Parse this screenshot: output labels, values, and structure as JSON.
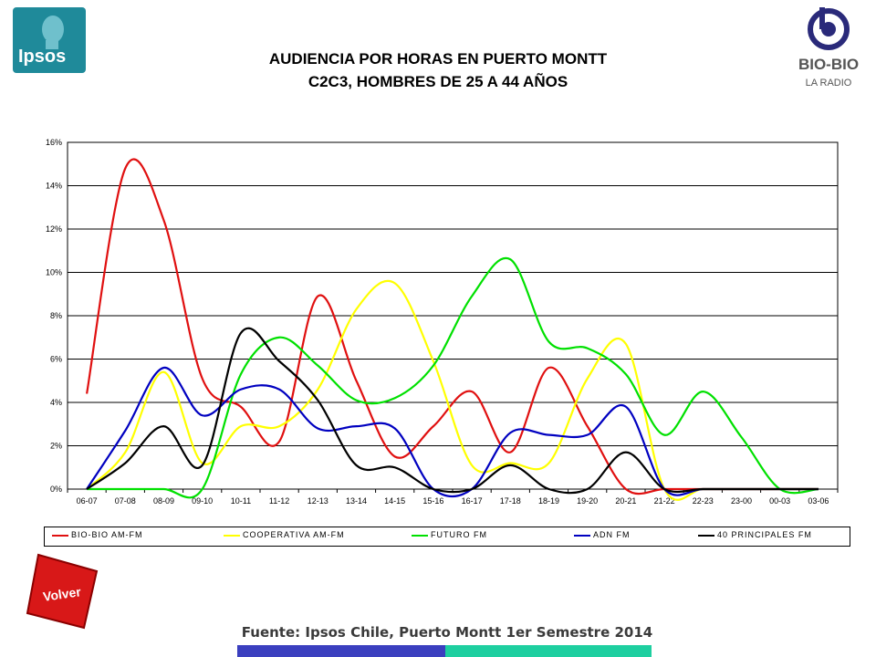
{
  "header": {
    "title_line1": "AUDIENCIA POR HORAS EN PUERTO MONTT",
    "title_line2": "C2C3, HOMBRES DE 25 A 44 AÑOS",
    "logo_left_text": "Ipsos",
    "logo_right_text": "BIO-BIO",
    "logo_right_sub": "LA RADIO"
  },
  "volver_label": "Volver",
  "source": "Fuente: Ipsos Chile, Puerto Montt 1er Semestre 2014",
  "chart_data": {
    "type": "line",
    "categories": [
      "06-07",
      "07-08",
      "08-09",
      "09-10",
      "10-11",
      "11-12",
      "12-13",
      "13-14",
      "14-15",
      "15-16",
      "16-17",
      "17-18",
      "18-19",
      "19-20",
      "20-21",
      "21-22",
      "22-23",
      "23-00",
      "00-03",
      "03-06"
    ],
    "y_ticks": [
      "0%",
      "2%",
      "4%",
      "6%",
      "8%",
      "10%",
      "12%",
      "14%",
      "16%"
    ],
    "ylim": [
      0,
      16
    ],
    "y_unit": "%",
    "grid": true,
    "smooth": true,
    "legend_position": "bottom",
    "series": [
      {
        "name": "BIO-BIO AM-FM",
        "color": "#e01010",
        "values": [
          4.4,
          14.8,
          12.4,
          5.1,
          3.8,
          2.2,
          8.9,
          5.0,
          1.5,
          2.9,
          4.5,
          1.7,
          5.6,
          2.9,
          0.0,
          0.0,
          0.0,
          0.0,
          0.0,
          0.0
        ]
      },
      {
        "name": "COOPERATIVA AM-FM",
        "color": "#ffff00",
        "values": [
          0.0,
          1.7,
          5.4,
          1.2,
          2.9,
          2.9,
          4.6,
          8.3,
          9.5,
          5.9,
          1.1,
          1.2,
          1.2,
          5.1,
          6.7,
          0.0,
          0.0,
          0.0,
          0.0,
          0.0
        ]
      },
      {
        "name": "FUTURO FM",
        "color": "#00e000",
        "values": [
          0.0,
          0.0,
          0.0,
          0.0,
          5.3,
          7.0,
          5.7,
          4.1,
          4.2,
          5.7,
          8.9,
          10.6,
          6.8,
          6.5,
          5.3,
          2.5,
          4.5,
          2.4,
          0.0,
          0.0
        ]
      },
      {
        "name": "ADN FM",
        "color": "#0000c0",
        "values": [
          0.0,
          2.7,
          5.6,
          3.4,
          4.6,
          4.6,
          2.8,
          2.9,
          2.8,
          0.0,
          0.0,
          2.6,
          2.5,
          2.5,
          3.8,
          0.0,
          0.0,
          0.0,
          0.0,
          0.0
        ]
      },
      {
        "name": "40 PRINCIPALES FM",
        "color": "#000000",
        "values": [
          0.0,
          1.2,
          2.9,
          1.1,
          7.2,
          5.9,
          4.1,
          1.1,
          1.0,
          0.0,
          0.0,
          1.1,
          0.0,
          0.0,
          1.7,
          0.0,
          0.0,
          0.0,
          0.0,
          0.0
        ]
      }
    ]
  }
}
